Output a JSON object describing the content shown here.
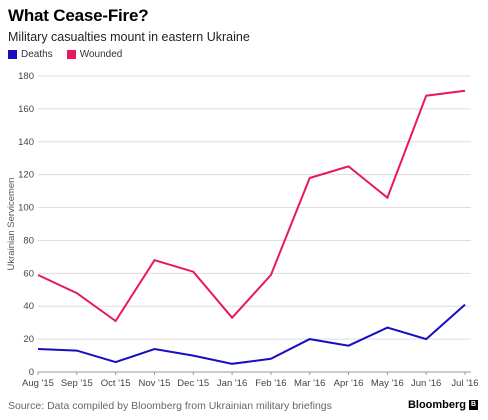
{
  "header": {
    "title": "What Cease-Fire?",
    "subtitle": "Military casualties mount in eastern Ukraine"
  },
  "footer": {
    "source": "Source: Data compiled by Bloomberg from Ukrainian military briefings",
    "logo": "Bloomberg",
    "logo_mark": "B"
  },
  "colors": {
    "deaths": "#1a0dbf",
    "wounded": "#e8185e",
    "grid": "#dddddd"
  },
  "chart_data": {
    "type": "line",
    "title": "What Cease-Fire?",
    "subtitle": "Military casualties mount in eastern Ukraine",
    "ylabel": "Ukrainian Servicemen",
    "xlabel": "",
    "categories": [
      "Aug '15",
      "Sep '15",
      "Oct '15",
      "Nov '15",
      "Dec '15",
      "Jan '16",
      "Feb '16",
      "Mar '16",
      "Apr '16",
      "May '16",
      "Jun '16",
      "Jul '16"
    ],
    "ylim": [
      0,
      180
    ],
    "yticks": [
      0,
      20,
      40,
      60,
      80,
      100,
      120,
      140,
      160,
      180
    ],
    "grid": true,
    "legend_position": "top-left",
    "series": [
      {
        "name": "Deaths",
        "color": "#1a0dbf",
        "values": [
          14,
          13,
          6,
          14,
          10,
          5,
          8,
          20,
          16,
          27,
          20,
          41
        ]
      },
      {
        "name": "Wounded",
        "color": "#e8185e",
        "values": [
          59,
          48,
          31,
          68,
          61,
          33,
          59,
          118,
          125,
          106,
          168,
          171
        ]
      }
    ]
  }
}
